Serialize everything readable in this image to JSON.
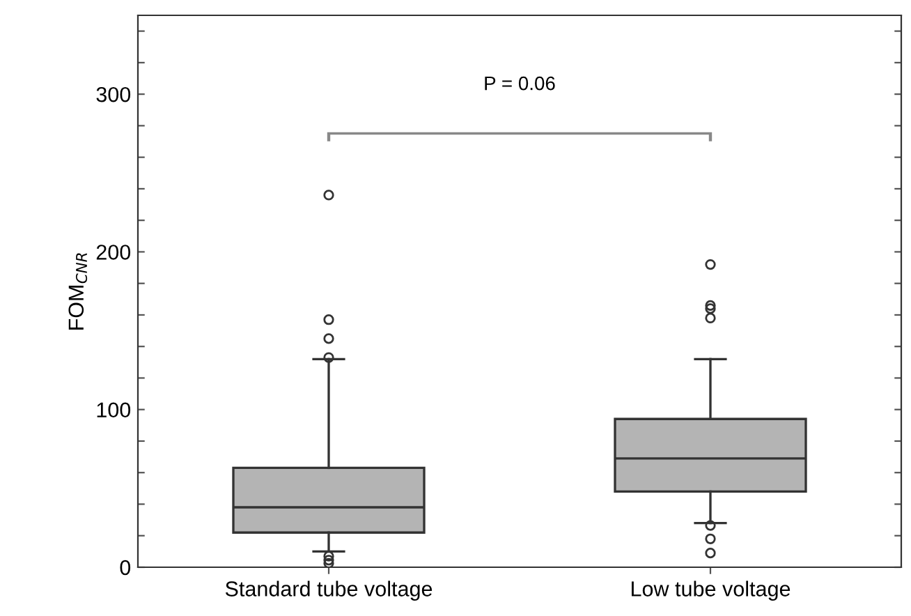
{
  "chart_data": {
    "type": "box",
    "ylabel": "FOM$_{CNR}$",
    "categories": [
      "Standard tube voltage",
      "Low tube voltage"
    ],
    "color": "#b4b4b4",
    "boxes": [
      {
        "low": 10,
        "q1": 22,
        "median": 38,
        "q3": 63,
        "high": 132,
        "outliers": [
          236,
          157,
          145,
          133,
          7,
          4.5,
          2.5
        ]
      },
      {
        "low": 28,
        "q1": 48,
        "median": 69,
        "q3": 94,
        "high": 132,
        "outliers": [
          192,
          166,
          164,
          158,
          26.5,
          18,
          9
        ]
      }
    ],
    "ylim": [
      0,
      350
    ],
    "yticks": [
      0,
      {
        "value": 20,
        "label": null
      },
      {
        "value": 40,
        "label": null
      },
      {
        "value": 60,
        "label": null
      },
      {
        "value": 80,
        "label": null
      },
      100,
      {
        "value": 120,
        "label": null
      },
      {
        "value": 140,
        "label": null
      },
      {
        "value": 160,
        "label": null
      },
      {
        "value": 180,
        "label": null
      },
      200,
      {
        "value": 220,
        "label": null
      },
      {
        "value": 240,
        "label": null
      },
      {
        "value": 260,
        "label": null
      },
      {
        "value": 280,
        "label": null
      },
      300,
      {
        "value": 320,
        "label": null
      },
      {
        "value": 340,
        "label": null
      }
    ],
    "annotations": [
      "P = 0.06"
    ],
    "grid": false,
    "legend": false
  }
}
